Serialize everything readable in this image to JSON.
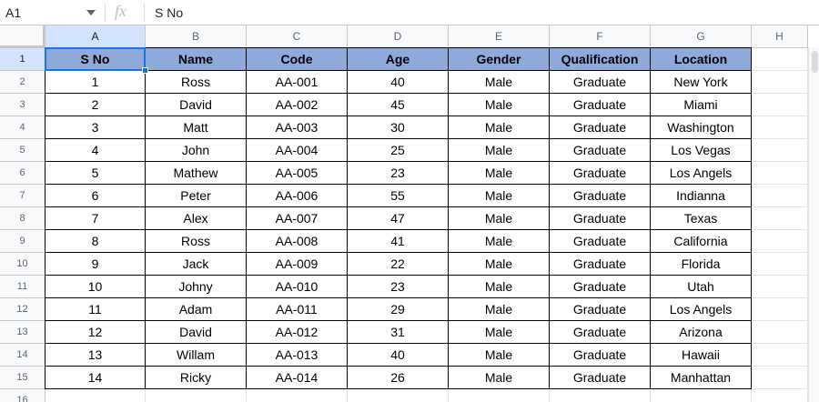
{
  "formula_bar": {
    "name_box": "A1",
    "icon": "fx",
    "content": "S No"
  },
  "columns": [
    "A",
    "B",
    "C",
    "D",
    "E",
    "F",
    "G",
    "H"
  ],
  "row_numbers": [
    1,
    2,
    3,
    4,
    5,
    6,
    7,
    8,
    9,
    10,
    11,
    12,
    13,
    14,
    15,
    16
  ],
  "table": {
    "header": [
      "S No",
      "Name",
      "Code",
      "Age",
      "Gender",
      "Qualification",
      "Location"
    ],
    "rows": [
      [
        1,
        "Ross",
        "AA-001",
        40,
        "Male",
        "Graduate",
        "New York"
      ],
      [
        2,
        "David",
        "AA-002",
        45,
        "Male",
        "Graduate",
        "Miami"
      ],
      [
        3,
        "Matt",
        "AA-003",
        30,
        "Male",
        "Graduate",
        "Washington"
      ],
      [
        4,
        "John",
        "AA-004",
        25,
        "Male",
        "Graduate",
        "Los Vegas"
      ],
      [
        5,
        "Mathew",
        "AA-005",
        23,
        "Male",
        "Graduate",
        "Los Angels"
      ],
      [
        6,
        "Peter",
        "AA-006",
        55,
        "Male",
        "Graduate",
        "Indianna"
      ],
      [
        7,
        "Alex",
        "AA-007",
        47,
        "Male",
        "Graduate",
        "Texas"
      ],
      [
        8,
        "Ross",
        "AA-008",
        41,
        "Male",
        "Graduate",
        "California"
      ],
      [
        9,
        "Jack",
        "AA-009",
        22,
        "Male",
        "Graduate",
        "Florida"
      ],
      [
        10,
        "Johny",
        "AA-010",
        23,
        "Male",
        "Graduate",
        "Utah"
      ],
      [
        11,
        "Adam",
        "AA-011",
        29,
        "Male",
        "Graduate",
        "Los Angels"
      ],
      [
        12,
        "David",
        "AA-012",
        31,
        "Male",
        "Graduate",
        "Arizona"
      ],
      [
        13,
        "Willam",
        "AA-013",
        40,
        "Male",
        "Graduate",
        "Hawaii"
      ],
      [
        14,
        "Ricky",
        "AA-014",
        26,
        "Male",
        "Graduate",
        "Manhattan"
      ]
    ]
  }
}
